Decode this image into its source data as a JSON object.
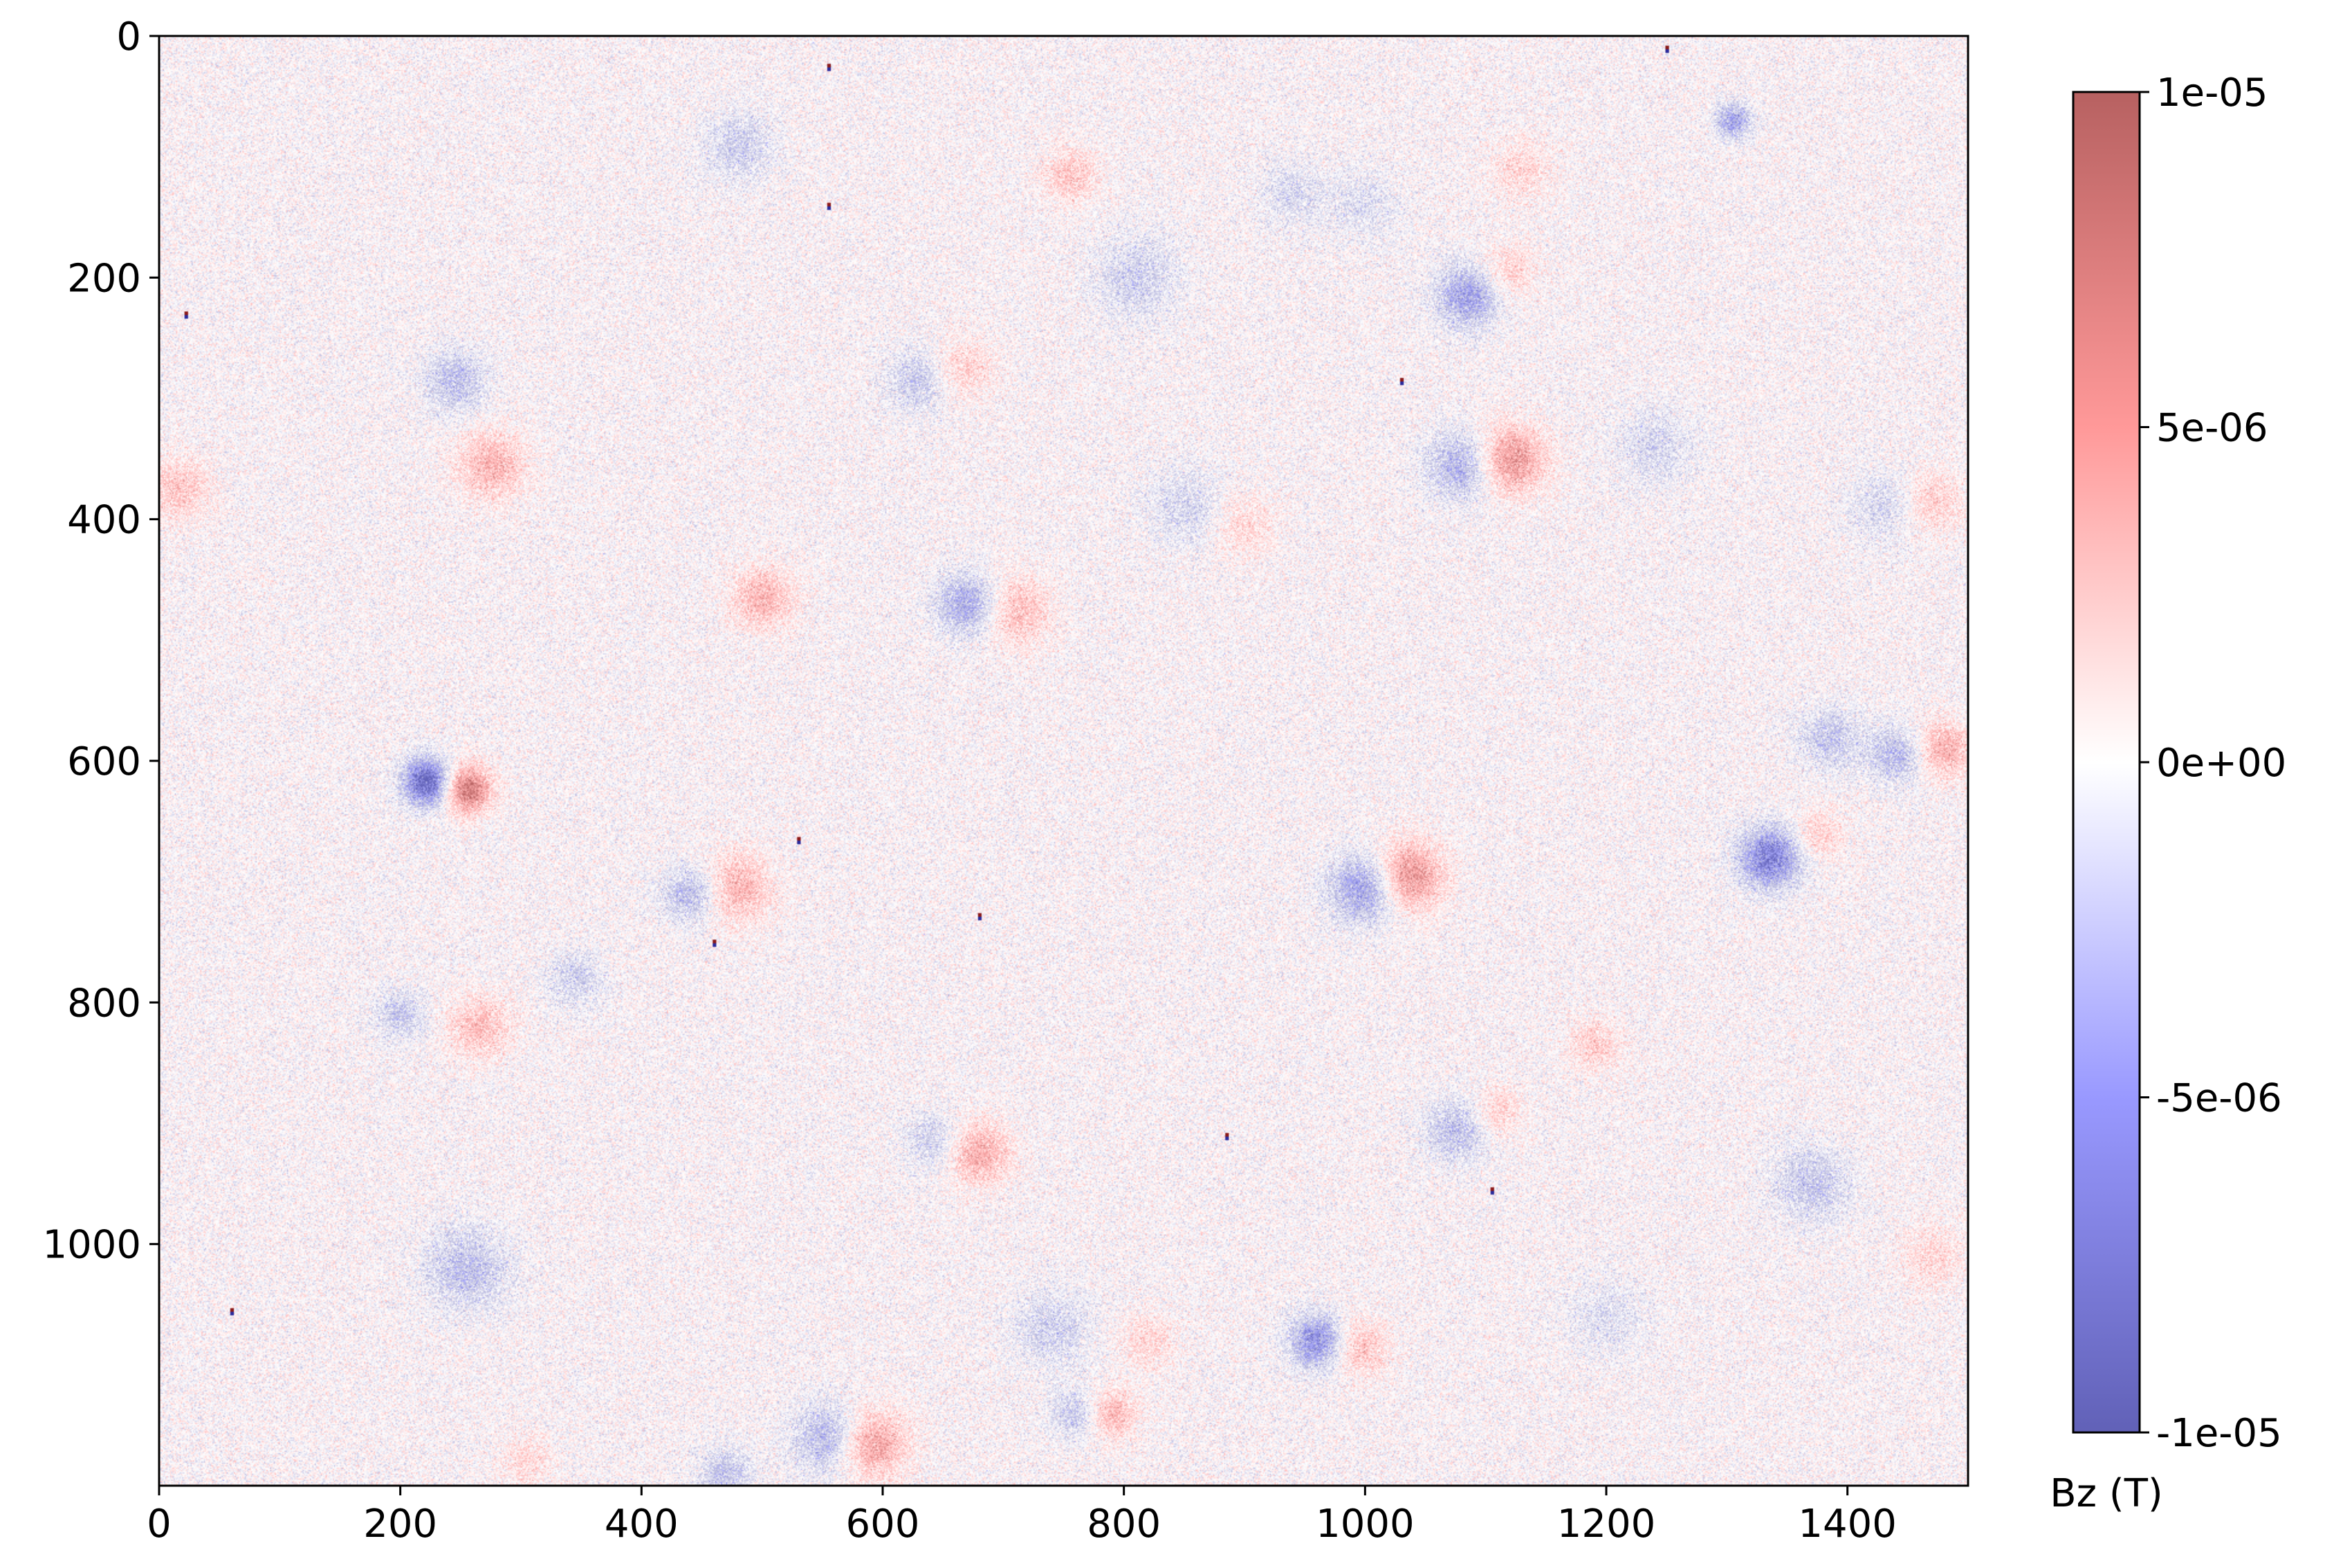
{
  "chart_data": {
    "type": "heatmap",
    "title": "",
    "xlabel": "",
    "ylabel": "",
    "xlim": [
      0,
      1500
    ],
    "ylim": [
      1200,
      0
    ],
    "x_ticks": [
      0,
      200,
      400,
      600,
      800,
      1000,
      1200,
      1400
    ],
    "y_ticks": [
      0,
      200,
      400,
      600,
      800,
      1000
    ],
    "colormap": "bwr",
    "colormap_colors": {
      "low": "#00008b",
      "mid": "#ffffff",
      "high": "#8b0000"
    },
    "colorbar": {
      "label": "Bz (T)",
      "vmin": -1e-05,
      "vmax": 1e-05,
      "ticks": [
        1e-05,
        5e-06,
        0,
        -5e-06,
        -1e-05
      ],
      "tick_labels": [
        "1e-05",
        "5e-06",
        "0e+00",
        "-5e-06",
        "-1e-05"
      ]
    },
    "noise_level": 1.6e-06,
    "grid": false,
    "features": [
      {
        "x": 222,
        "y": 617,
        "value": -1e-05,
        "sigma": 14
      },
      {
        "x": 255,
        "y": 623,
        "value": 8.5e-06,
        "sigma": 14
      },
      {
        "x": 1335,
        "y": 680,
        "value": -8e-06,
        "sigma": 18
      },
      {
        "x": 1305,
        "y": 70,
        "value": -6e-06,
        "sigma": 10
      },
      {
        "x": 1000,
        "y": 705,
        "value": -6.5e-06,
        "sigma": 20
      },
      {
        "x": 1035,
        "y": 695,
        "value": 7e-06,
        "sigma": 20
      },
      {
        "x": 960,
        "y": 1080,
        "value": -7e-06,
        "sigma": 16
      },
      {
        "x": 995,
        "y": 1085,
        "value": 4e-06,
        "sigma": 16
      },
      {
        "x": 555,
        "y": 1160,
        "value": -5e-06,
        "sigma": 20
      },
      {
        "x": 590,
        "y": 1165,
        "value": 6e-06,
        "sigma": 20
      },
      {
        "x": 670,
        "y": 470,
        "value": -5.5e-06,
        "sigma": 18
      },
      {
        "x": 710,
        "y": 475,
        "value": 4e-06,
        "sigma": 20
      },
      {
        "x": 500,
        "y": 465,
        "value": 4.5e-06,
        "sigma": 18
      },
      {
        "x": 1085,
        "y": 215,
        "value": -6e-06,
        "sigma": 18
      },
      {
        "x": 1080,
        "y": 355,
        "value": -5e-06,
        "sigma": 20
      },
      {
        "x": 1120,
        "y": 350,
        "value": 6.5e-06,
        "sigma": 20
      },
      {
        "x": 1118,
        "y": 195,
        "value": 3e-06,
        "sigma": 16
      },
      {
        "x": 440,
        "y": 710,
        "value": -4.5e-06,
        "sigma": 16
      },
      {
        "x": 480,
        "y": 705,
        "value": 4.5e-06,
        "sigma": 20
      },
      {
        "x": 680,
        "y": 925,
        "value": 5e-06,
        "sigma": 18
      },
      {
        "x": 640,
        "y": 915,
        "value": -3e-06,
        "sigma": 16
      },
      {
        "x": 275,
        "y": 355,
        "value": 4.5e-06,
        "sigma": 20
      },
      {
        "x": 245,
        "y": 285,
        "value": -4e-06,
        "sigma": 18
      },
      {
        "x": 265,
        "y": 820,
        "value": 4e-06,
        "sigma": 18
      },
      {
        "x": 200,
        "y": 810,
        "value": -3.5e-06,
        "sigma": 14
      },
      {
        "x": 255,
        "y": 1020,
        "value": -4e-06,
        "sigma": 24
      },
      {
        "x": 1075,
        "y": 905,
        "value": -4e-06,
        "sigma": 18
      },
      {
        "x": 1110,
        "y": 890,
        "value": 3e-06,
        "sigma": 14
      },
      {
        "x": 790,
        "y": 1140,
        "value": 4.5e-06,
        "sigma": 14
      },
      {
        "x": 760,
        "y": 1140,
        "value": -3.5e-06,
        "sigma": 14
      },
      {
        "x": 740,
        "y": 1070,
        "value": -3e-06,
        "sigma": 22
      },
      {
        "x": 820,
        "y": 1080,
        "value": 2.5e-06,
        "sigma": 16
      },
      {
        "x": 1440,
        "y": 595,
        "value": -4.5e-06,
        "sigma": 16
      },
      {
        "x": 1480,
        "y": 590,
        "value": 5e-06,
        "sigma": 16
      },
      {
        "x": 1375,
        "y": 660,
        "value": 3e-06,
        "sigma": 14
      },
      {
        "x": 1385,
        "y": 580,
        "value": -3.5e-06,
        "sigma": 18
      },
      {
        "x": 1370,
        "y": 950,
        "value": -3.5e-06,
        "sigma": 22
      },
      {
        "x": 15,
        "y": 375,
        "value": 3.5e-06,
        "sigma": 18
      },
      {
        "x": 755,
        "y": 115,
        "value": 3.5e-06,
        "sigma": 16
      },
      {
        "x": 630,
        "y": 285,
        "value": -3.5e-06,
        "sigma": 18
      },
      {
        "x": 665,
        "y": 275,
        "value": 3e-06,
        "sigma": 18
      },
      {
        "x": 480,
        "y": 90,
        "value": -3e-06,
        "sigma": 20
      },
      {
        "x": 1470,
        "y": 385,
        "value": 3e-06,
        "sigma": 18
      },
      {
        "x": 1430,
        "y": 390,
        "value": -2.5e-06,
        "sigma": 20
      },
      {
        "x": 1240,
        "y": 340,
        "value": -2.5e-06,
        "sigma": 22
      },
      {
        "x": 900,
        "y": 405,
        "value": 2.5e-06,
        "sigma": 18
      },
      {
        "x": 1190,
        "y": 835,
        "value": 3e-06,
        "sigma": 16
      },
      {
        "x": 345,
        "y": 780,
        "value": -3e-06,
        "sigma": 16
      },
      {
        "x": 940,
        "y": 130,
        "value": -2.5e-06,
        "sigma": 18
      },
      {
        "x": 810,
        "y": 200,
        "value": -3e-06,
        "sigma": 24
      },
      {
        "x": 1000,
        "y": 140,
        "value": -2e-06,
        "sigma": 20
      },
      {
        "x": 1130,
        "y": 110,
        "value": 2.5e-06,
        "sigma": 18
      },
      {
        "x": 850,
        "y": 390,
        "value": -2.5e-06,
        "sigma": 22
      },
      {
        "x": 470,
        "y": 1190,
        "value": -3.5e-06,
        "sigma": 16
      },
      {
        "x": 1470,
        "y": 1010,
        "value": 2.5e-06,
        "sigma": 18
      },
      {
        "x": 305,
        "y": 1180,
        "value": 2.5e-06,
        "sigma": 14
      },
      {
        "x": 1200,
        "y": 1060,
        "value": -2e-06,
        "sigma": 22
      }
    ],
    "dipole_specks": [
      {
        "x": 555,
        "y": 25
      },
      {
        "x": 22,
        "y": 230
      },
      {
        "x": 530,
        "y": 665
      },
      {
        "x": 680,
        "y": 728
      },
      {
        "x": 1105,
        "y": 955
      },
      {
        "x": 60,
        "y": 1055
      },
      {
        "x": 555,
        "y": 140
      },
      {
        "x": 1030,
        "y": 285
      },
      {
        "x": 885,
        "y": 910
      },
      {
        "x": 460,
        "y": 750
      },
      {
        "x": 1250,
        "y": 10
      }
    ]
  }
}
